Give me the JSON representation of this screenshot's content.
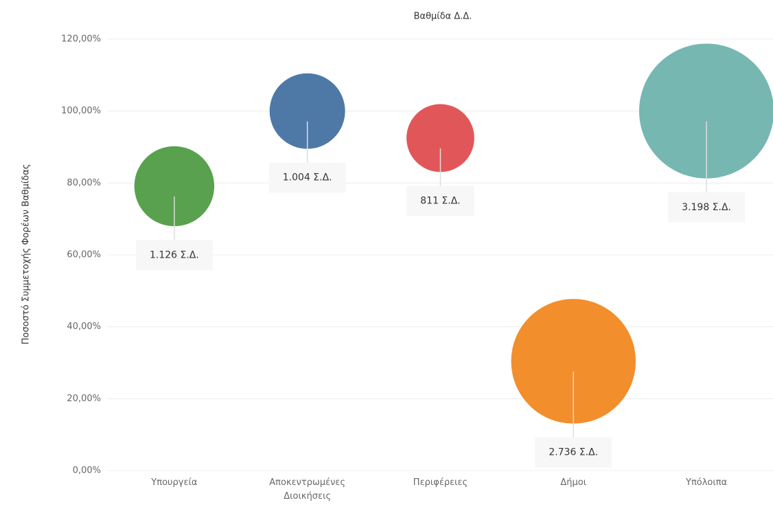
{
  "chart_data": {
    "type": "bubble",
    "title": "Βαθμίδα Δ.Δ.",
    "y_label": "Ποσοστό Συμμετοχής Φορέων Βαθμίδας",
    "categories": [
      "Υπουργεία",
      "Αποκεντρωμένες Διοικήσεις",
      "Περιφέρειες",
      "Δήμοι",
      "Υπόλοιπα"
    ],
    "values": [
      79.1,
      100,
      92.5,
      30.4,
      100
    ],
    "sizes": [
      1126,
      1004,
      811,
      2736,
      3198
    ],
    "value_labels": [
      "1.126 Σ.Δ.",
      "1.004 Σ.Δ.",
      "811 Σ.Δ.",
      "2.736 Σ.Δ.",
      "3.198 Σ.Δ."
    ],
    "colors": [
      "#59a14f",
      "#4e79a7",
      "#e15759",
      "#f28e2b",
      "#76b7b2"
    ],
    "ylim": [
      0,
      120
    ],
    "yticks": [
      {
        "value": 0,
        "label": "0,00%"
      },
      {
        "value": 20,
        "label": "20,00%"
      },
      {
        "value": 40,
        "label": "40,00%"
      },
      {
        "value": 60,
        "label": "60,00%"
      },
      {
        "value": 80,
        "label": "80,00%"
      },
      {
        "value": 100,
        "label": "100,00%"
      },
      {
        "value": 120,
        "label": "120,00%"
      }
    ],
    "grid": true
  }
}
